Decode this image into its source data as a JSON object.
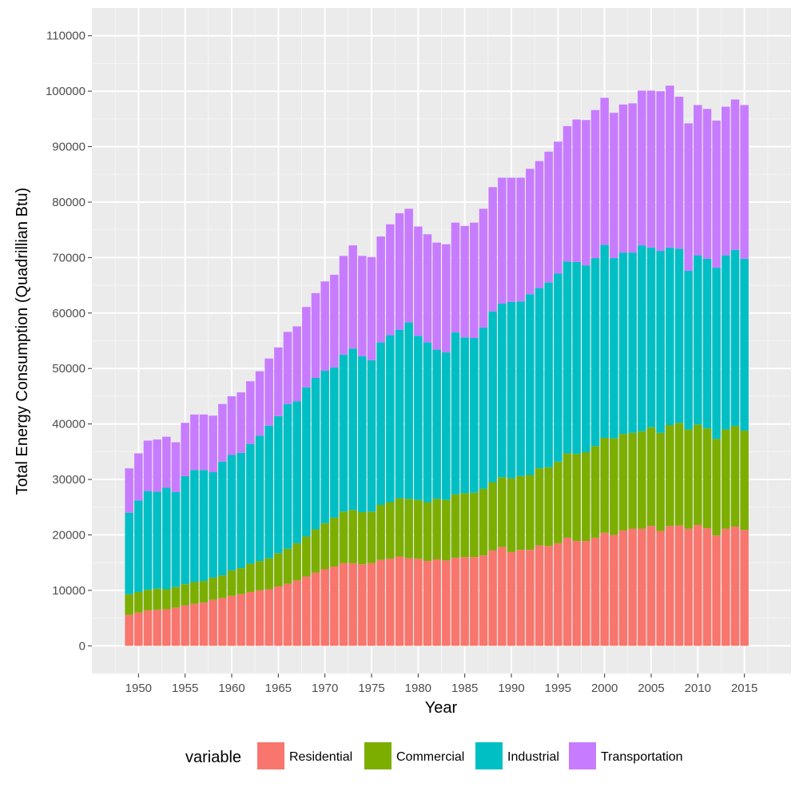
{
  "chart_data": {
    "type": "bar",
    "stacked": true,
    "xlabel": "Year",
    "ylabel": "Total Energy Consumption (Quadrillian Btu)",
    "xlim": [
      1945,
      2020
    ],
    "ylim": [
      -5000,
      115000
    ],
    "x_ticks": [
      1950,
      1955,
      1960,
      1965,
      1970,
      1975,
      1980,
      1985,
      1990,
      1995,
      2000,
      2005,
      2010,
      2015
    ],
    "y_ticks": [
      0,
      10000,
      20000,
      30000,
      40000,
      50000,
      60000,
      70000,
      80000,
      90000,
      100000,
      110000
    ],
    "legend_title": "variable",
    "legend_position": "bottom",
    "grid": true,
    "x": [
      1949,
      1950,
      1951,
      1952,
      1953,
      1954,
      1955,
      1956,
      1957,
      1958,
      1959,
      1960,
      1961,
      1962,
      1963,
      1964,
      1965,
      1966,
      1967,
      1968,
      1969,
      1970,
      1971,
      1972,
      1973,
      1974,
      1975,
      1976,
      1977,
      1978,
      1979,
      1980,
      1981,
      1982,
      1983,
      1984,
      1985,
      1986,
      1987,
      1988,
      1989,
      1990,
      1991,
      1992,
      1993,
      1994,
      1995,
      1996,
      1997,
      1998,
      1999,
      2000,
      2001,
      2002,
      2003,
      2004,
      2005,
      2006,
      2007,
      2008,
      2009,
      2010,
      2011,
      2012,
      2013,
      2014,
      2015
    ],
    "series": [
      {
        "name": "Residential",
        "color": "#F8766D",
        "values": [
          5600,
          6000,
          6400,
          6500,
          6600,
          6900,
          7300,
          7600,
          7800,
          8300,
          8600,
          9000,
          9300,
          9700,
          10000,
          10200,
          10700,
          11200,
          11800,
          12500,
          13200,
          13800,
          14300,
          14900,
          14900,
          14700,
          14900,
          15500,
          15700,
          16100,
          15800,
          15700,
          15300,
          15600,
          15400,
          15900,
          16000,
          16000,
          16300,
          17200,
          17800,
          16900,
          17300,
          17300,
          18100,
          18000,
          18500,
          19500,
          18900,
          18900,
          19500,
          20400,
          20000,
          20800,
          21100,
          21100,
          21600,
          20700,
          21600,
          21700,
          21100,
          21800,
          21200,
          19900,
          21100,
          21500,
          20900
        ]
      },
      {
        "name": "Commercial",
        "color": "#7CAE00",
        "values": [
          3700,
          3700,
          3700,
          3800,
          3600,
          3700,
          3800,
          3900,
          3900,
          4000,
          4100,
          4600,
          4700,
          5100,
          5300,
          5600,
          6000,
          6300,
          6700,
          7200,
          7800,
          8300,
          8800,
          9300,
          9600,
          9400,
          9300,
          9900,
          10200,
          10500,
          10700,
          10600,
          10600,
          10900,
          10900,
          11400,
          11500,
          11600,
          12000,
          12300,
          12600,
          13300,
          13300,
          13500,
          13900,
          14200,
          14700,
          15200,
          15700,
          16000,
          16500,
          17100,
          17400,
          17400,
          17300,
          17600,
          17800,
          17700,
          18200,
          18500,
          17900,
          18100,
          18000,
          17400,
          17900,
          18100,
          17900
        ]
      },
      {
        "name": "Industrial",
        "color": "#00BFC4",
        "values": [
          14700,
          16500,
          17800,
          17500,
          18300,
          17100,
          19500,
          20200,
          20000,
          19000,
          20500,
          20800,
          20800,
          21600,
          22600,
          23900,
          24700,
          26100,
          25600,
          26900,
          27300,
          27500,
          27100,
          28300,
          29100,
          28100,
          27300,
          29300,
          30100,
          30400,
          31800,
          29600,
          28800,
          26900,
          26600,
          29200,
          28100,
          27900,
          29100,
          30800,
          31300,
          31800,
          31500,
          32600,
          32500,
          33300,
          33900,
          34600,
          34600,
          33700,
          33900,
          34800,
          32500,
          32700,
          32500,
          33500,
          32400,
          32800,
          32000,
          31400,
          28600,
          30500,
          30600,
          30900,
          31400,
          31800,
          31000
        ]
      },
      {
        "name": "Transportation",
        "color": "#C77CFF",
        "values": [
          8000,
          8500,
          9100,
          9400,
          9200,
          9000,
          9600,
          10000,
          10000,
          10200,
          10400,
          10600,
          10900,
          11300,
          11600,
          12100,
          12400,
          13000,
          13500,
          14500,
          15300,
          16100,
          16700,
          17800,
          18600,
          18100,
          18600,
          19100,
          20000,
          21000,
          20500,
          19700,
          19500,
          19300,
          19500,
          19800,
          20100,
          20800,
          21400,
          22400,
          22700,
          22400,
          22300,
          22600,
          22900,
          23600,
          23800,
          24400,
          25700,
          26200,
          26700,
          26500,
          26200,
          26700,
          26900,
          27900,
          28300,
          28800,
          29200,
          27400,
          26600,
          27100,
          27000,
          26500,
          26800,
          27100,
          27700
        ]
      }
    ]
  }
}
